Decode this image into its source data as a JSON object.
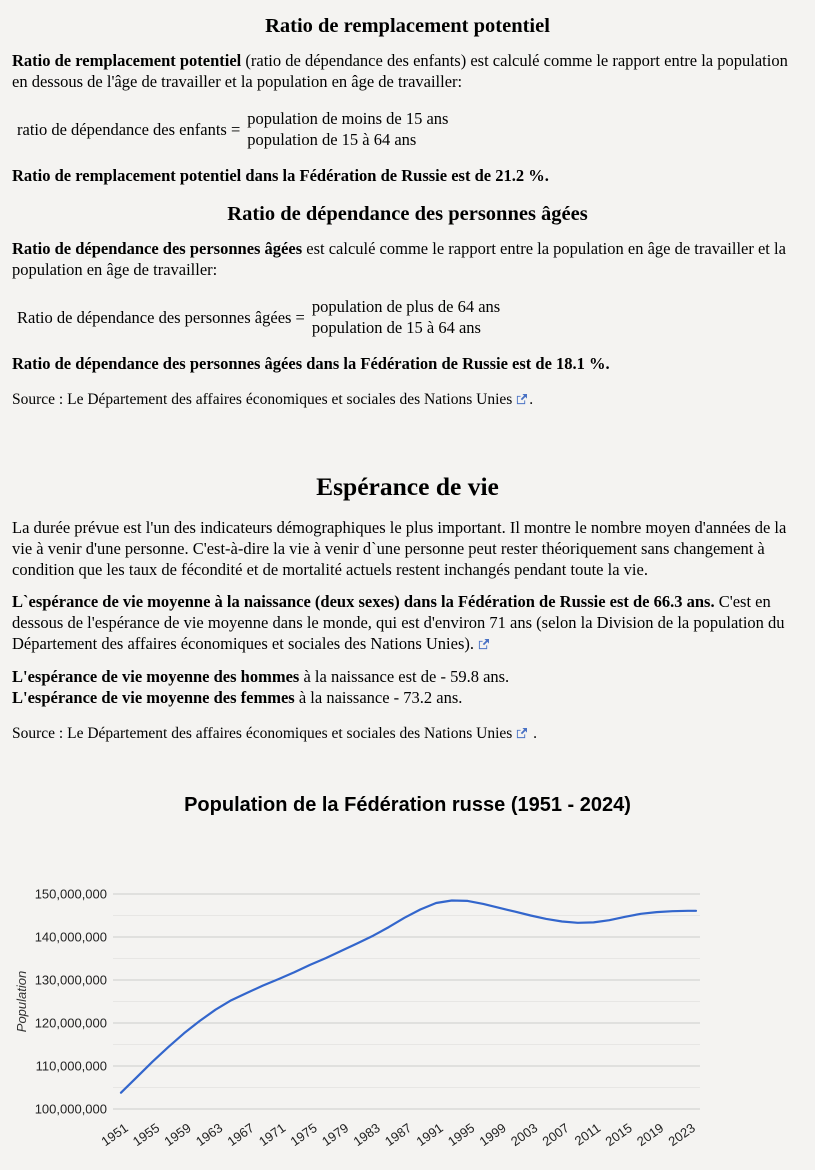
{
  "page": {
    "background": "#f4f3f1",
    "link_icon_color": "#4a72c4"
  },
  "sections": {
    "replacement": {
      "heading": "Ratio de remplacement potentiel",
      "para_bold": "Ratio de remplacement potentiel",
      "para_rest": " (ratio de dépendance des enfants) est calculé comme le rapport entre la population en dessous de l'âge de travailler et la population en âge de travailler:",
      "formula_label": "ratio de dépendance des enfants =",
      "formula_num": "population de moins de 15 ans",
      "formula_den": "population de 15 à 64 ans",
      "result": "Ratio de remplacement potentiel dans la Fédération de Russie est de 21.2 %."
    },
    "elderly": {
      "heading": "Ratio de dépendance des personnes âgées",
      "para_bold": "Ratio de dépendance des personnes âgées",
      "para_rest": " est calculé comme le rapport entre la population en âge de travailler et la population en âge de travailler:",
      "formula_label": "Ratio de dépendance des personnes âgées =",
      "formula_num": "population de plus de 64 ans",
      "formula_den": "population de 15 à 64 ans",
      "result": "Ratio de dépendance des personnes âgées dans la Fédération de Russie est de 18.1 %.",
      "source_prefix": "Source : Le Département des affaires économiques et sociales des Nations Unies",
      "source_suffix": "."
    },
    "life": {
      "heading": "Espérance de vie",
      "p1": "La durée prévue est l'un des indicateurs démographiques le plus important. Il montre le nombre moyen d'années de la vie à venir d'une personne. C'est-à-dire la vie à venir d`une personne peut rester théoriquement sans changement à condition que les taux de fécondité et de mortalité actuels restent inchangés pendant toute la vie.",
      "p2_bold": "L`espérance de vie moyenne à la naissance (deux sexes) dans la Fédération de Russie est de 66.3 ans.",
      "p2_rest": " C'est en dessous de l'espérance de vie moyenne dans le monde, qui est d'environ 71 ans (selon la Division de la population du Département des affaires économiques et sociales des Nations Unies).",
      "men_bold": "L'espérance de vie moyenne des hommes",
      "men_rest": " à la naissance est de - 59.8 ans.",
      "women_bold": "L'espérance de vie moyenne des femmes",
      "women_rest": " à la naissance - 73.2 ans.",
      "source_prefix": "Source : Le Département des affaires économiques et sociales des Nations Unies",
      "source_suffix": " ."
    }
  },
  "chart_data": {
    "type": "line",
    "title": "Population de la Fédération russe (1951 - 2024)",
    "xlabel": "",
    "ylabel": "Population",
    "legend": "none",
    "grid": true,
    "line_color": "#3366cc",
    "x_min": 1951,
    "x_max": 2024,
    "y_min": 100000000,
    "y_max": 150000000,
    "x_ticks": [
      1951,
      1955,
      1959,
      1963,
      1967,
      1971,
      1975,
      1979,
      1983,
      1987,
      1991,
      1995,
      1999,
      2003,
      2007,
      2011,
      2015,
      2019,
      2023
    ],
    "y_ticks": [
      {
        "v": 100000000,
        "label": "100,000,000"
      },
      {
        "v": 110000000,
        "label": "110,000,000"
      },
      {
        "v": 120000000,
        "label": "120,000,000"
      },
      {
        "v": 130000000,
        "label": "130,000,000"
      },
      {
        "v": 140000000,
        "label": "140,000,000"
      },
      {
        "v": 150000000,
        "label": "150,000,000"
      }
    ],
    "y_minor": [
      105000000,
      115000000,
      125000000,
      135000000,
      145000000
    ],
    "series": [
      {
        "name": "Population",
        "points": [
          [
            1951,
            103800000
          ],
          [
            1953,
            107400000
          ],
          [
            1955,
            111000000
          ],
          [
            1957,
            114400000
          ],
          [
            1959,
            117600000
          ],
          [
            1961,
            120500000
          ],
          [
            1963,
            123100000
          ],
          [
            1965,
            125300000
          ],
          [
            1967,
            127000000
          ],
          [
            1969,
            128700000
          ],
          [
            1971,
            130200000
          ],
          [
            1973,
            131800000
          ],
          [
            1975,
            133500000
          ],
          [
            1977,
            135100000
          ],
          [
            1979,
            136800000
          ],
          [
            1981,
            138500000
          ],
          [
            1983,
            140300000
          ],
          [
            1985,
            142300000
          ],
          [
            1987,
            144500000
          ],
          [
            1989,
            146400000
          ],
          [
            1991,
            147900000
          ],
          [
            1993,
            148500000
          ],
          [
            1995,
            148400000
          ],
          [
            1997,
            147700000
          ],
          [
            1999,
            146800000
          ],
          [
            2001,
            145900000
          ],
          [
            2003,
            145000000
          ],
          [
            2005,
            144200000
          ],
          [
            2007,
            143600000
          ],
          [
            2009,
            143300000
          ],
          [
            2011,
            143400000
          ],
          [
            2013,
            143900000
          ],
          [
            2015,
            144700000
          ],
          [
            2017,
            145400000
          ],
          [
            2019,
            145800000
          ],
          [
            2021,
            146000000
          ],
          [
            2023,
            146100000
          ],
          [
            2024,
            146100000
          ]
        ]
      }
    ]
  }
}
